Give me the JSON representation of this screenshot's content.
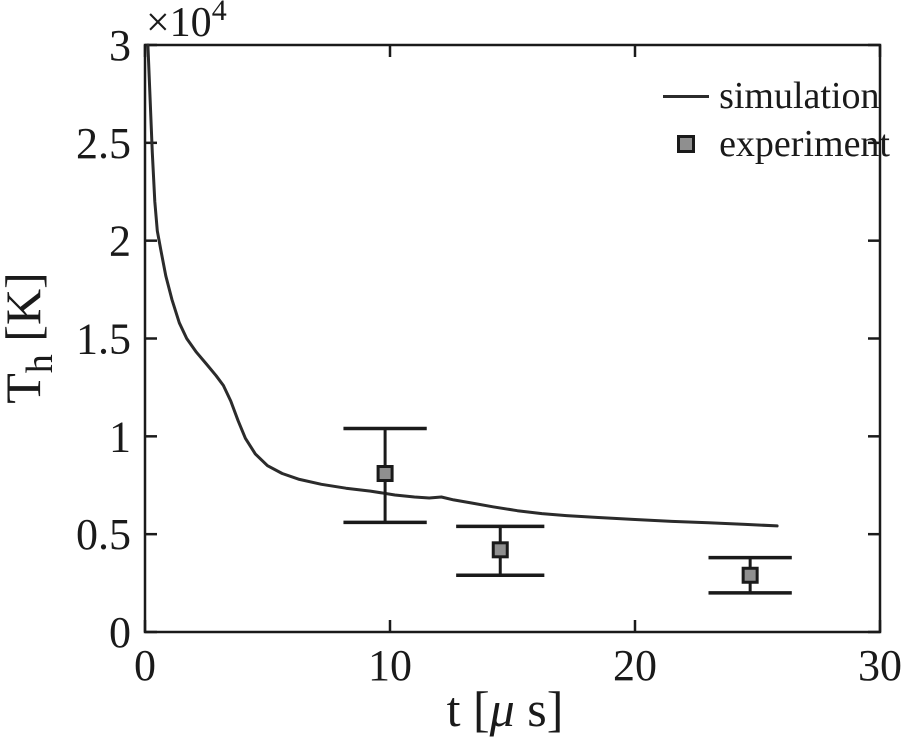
{
  "figure": {
    "type": "scientific-plot",
    "background": "#ffffff"
  },
  "chart_data": {
    "type": "line",
    "title": "",
    "xlabel": {
      "text": "t [μ s]",
      "pre": "t [",
      "mu": "μ",
      "post": " s]"
    },
    "ylabel": {
      "text": "T_h [K]",
      "base": "T",
      "sub": "h",
      "post": " [K]"
    },
    "y_offset": {
      "text": "×10^4",
      "base": "×10",
      "exp": "4"
    },
    "xlim": [
      0,
      30
    ],
    "ylim": [
      0,
      3
    ],
    "y_units": "10^4 K",
    "grid": false,
    "box": true,
    "xticks": [
      {
        "value": 0,
        "label": "0"
      },
      {
        "value": 10,
        "label": "10"
      },
      {
        "value": 20,
        "label": "20"
      },
      {
        "value": 30,
        "label": "30"
      }
    ],
    "yticks": [
      {
        "value": 0,
        "label": "0"
      },
      {
        "value": 0.5,
        "label": "0.5"
      },
      {
        "value": 1,
        "label": "1"
      },
      {
        "value": 1.5,
        "label": "1.5"
      },
      {
        "value": 2,
        "label": "2"
      },
      {
        "value": 2.5,
        "label": "2.5"
      },
      {
        "value": 3,
        "label": "3"
      }
    ],
    "legend": {
      "position": "top-right",
      "items": [
        {
          "label": "simulation",
          "type": "line"
        },
        {
          "label": "experiment",
          "type": "square-marker"
        }
      ]
    },
    "series": [
      {
        "name": "simulation",
        "type": "line",
        "color": "#2b2b2b",
        "points": [
          [
            0.12,
            3.0
          ],
          [
            0.2,
            2.75
          ],
          [
            0.3,
            2.45
          ],
          [
            0.4,
            2.2
          ],
          [
            0.5,
            2.05
          ],
          [
            0.65,
            1.95
          ],
          [
            0.85,
            1.82
          ],
          [
            1.1,
            1.7
          ],
          [
            1.4,
            1.58
          ],
          [
            1.7,
            1.5
          ],
          [
            2.1,
            1.43
          ],
          [
            2.5,
            1.37
          ],
          [
            2.9,
            1.31
          ],
          [
            3.2,
            1.26
          ],
          [
            3.5,
            1.18
          ],
          [
            3.8,
            1.08
          ],
          [
            4.1,
            0.99
          ],
          [
            4.5,
            0.91
          ],
          [
            5.0,
            0.85
          ],
          [
            5.6,
            0.81
          ],
          [
            6.3,
            0.78
          ],
          [
            7.2,
            0.755
          ],
          [
            8.2,
            0.735
          ],
          [
            9.2,
            0.72
          ],
          [
            10.2,
            0.7
          ],
          [
            11.0,
            0.69
          ],
          [
            11.6,
            0.685
          ],
          [
            12.1,
            0.69
          ],
          [
            12.6,
            0.675
          ],
          [
            13.3,
            0.66
          ],
          [
            14.2,
            0.64
          ],
          [
            15.2,
            0.62
          ],
          [
            16.2,
            0.605
          ],
          [
            17.2,
            0.595
          ],
          [
            18.5,
            0.585
          ],
          [
            20.0,
            0.575
          ],
          [
            21.5,
            0.565
          ],
          [
            23.0,
            0.558
          ],
          [
            24.5,
            0.55
          ],
          [
            25.8,
            0.542
          ]
        ]
      }
    ],
    "experiment": {
      "name": "experiment",
      "marker": "square",
      "marker_fill": "#8f8f8f",
      "marker_edge": "#1a1a1a",
      "points": [
        {
          "t": 9.8,
          "T": 0.81,
          "T_low": 0.56,
          "T_high": 1.04,
          "cap_halfwidth": 1.7
        },
        {
          "t": 14.5,
          "T": 0.42,
          "T_low": 0.29,
          "T_high": 0.54,
          "cap_halfwidth": 1.8
        },
        {
          "t": 24.7,
          "T": 0.29,
          "T_low": 0.2,
          "T_high": 0.38,
          "cap_halfwidth": 1.7
        }
      ]
    },
    "colors": {
      "axis": "#1a1a1a",
      "text": "#1a1a1a",
      "line": "#2b2b2b",
      "marker_fill": "#8f8f8f",
      "marker_edge": "#1a1a1a"
    }
  }
}
